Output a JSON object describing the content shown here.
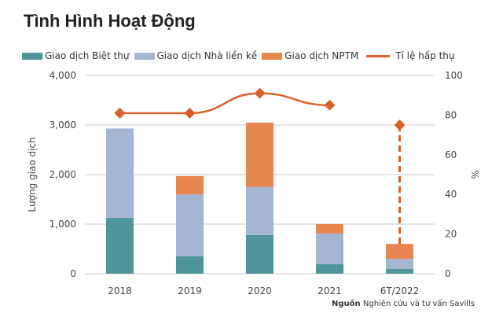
{
  "title": "Tình Hình Hoạt Động",
  "source": {
    "label": "Nguồn",
    "text": "Nghiên cứu và tư vấn Savills"
  },
  "chart_data": {
    "type": "bar",
    "stacked": true,
    "categories": [
      "2018",
      "2019",
      "2020",
      "2021",
      "6T/2022"
    ],
    "series": [
      {
        "name": "Giao dịch Biệt thự",
        "type": "bar",
        "axis": "left",
        "color": "#4f9599",
        "values": [
          1130,
          350,
          780,
          190,
          100
        ]
      },
      {
        "name": "Giao dịch Nhà liền kề",
        "type": "bar",
        "axis": "left",
        "color": "#a5b6d3",
        "values": [
          1800,
          1250,
          970,
          620,
          200
        ]
      },
      {
        "name": "Giao dịch NPTM",
        "type": "bar",
        "axis": "left",
        "color": "#e8864f",
        "values": [
          0,
          370,
          1300,
          190,
          300
        ]
      },
      {
        "name": "Tỉ lệ hấp thụ",
        "type": "line",
        "axis": "right",
        "color": "#d9602a",
        "values": [
          81,
          81,
          91,
          85,
          75
        ]
      }
    ],
    "ylabel": "Lượng giao dịch",
    "y2label": "%",
    "ylim": [
      0,
      4000
    ],
    "y2lim": [
      0,
      100
    ],
    "yticks": [
      "0",
      "1,000",
      "2,000",
      "3,000",
      "4,000"
    ],
    "y2ticks": [
      "0",
      "20",
      "40",
      "60",
      "80",
      "100"
    ],
    "grid": true,
    "legend": "top"
  }
}
